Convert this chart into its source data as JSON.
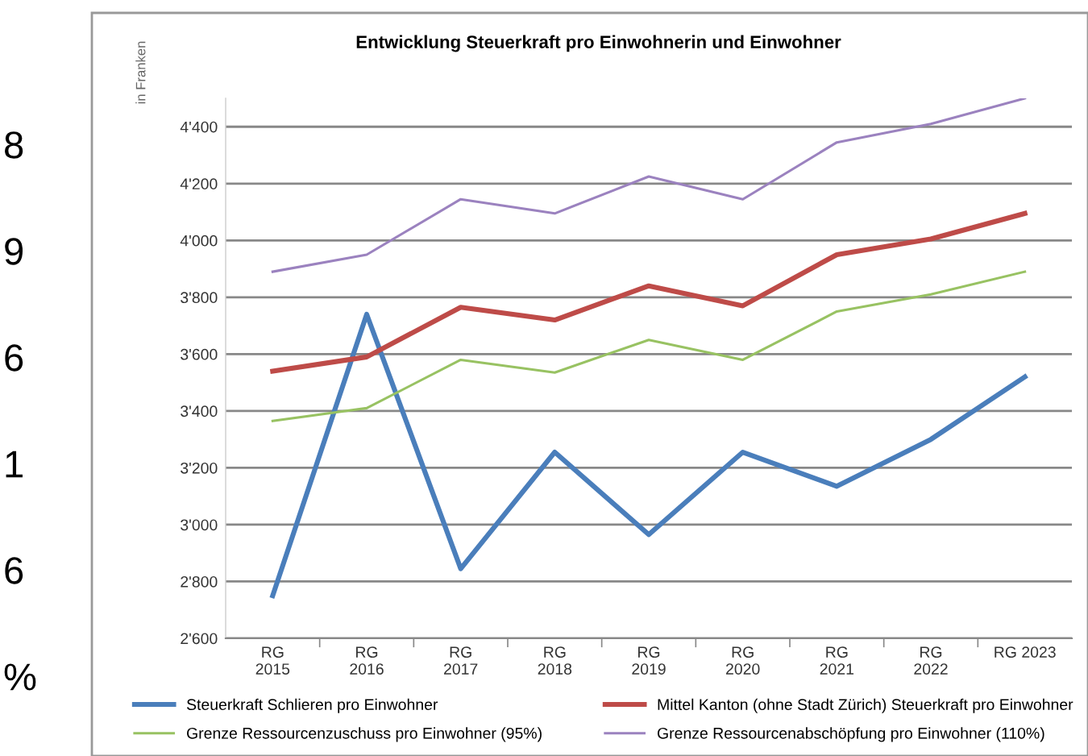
{
  "chart_data": {
    "type": "line",
    "title": "Entwicklung Steuerkraft pro Einwohnerin und Einwohner",
    "ylabel": "in Franken",
    "categories": [
      "RG\n2015",
      "RG\n2016",
      "RG\n2017",
      "RG\n2018",
      "RG\n2019",
      "RG\n2020",
      "RG\n2021",
      "RG\n2022",
      "RG 2023"
    ],
    "series": [
      {
        "name": "Steuerkraft Schlieren pro Einwohner",
        "color": "#4a7ebb",
        "values": [
          2750,
          3740,
          2845,
          3255,
          2965,
          3255,
          3135,
          3300,
          3520
        ]
      },
      {
        "name": "Mittel Kanton (ohne Stadt Zürich) Steuerkraft pro Einwohner",
        "color": "#be4b48",
        "values": [
          3540,
          3590,
          3765,
          3720,
          3840,
          3770,
          3950,
          4005,
          4095
        ]
      },
      {
        "name": "Grenze Ressourcenzuschuss pro Einwohner (95%)",
        "color": "#98c262",
        "values": [
          3365,
          3410,
          3580,
          3535,
          3650,
          3580,
          3750,
          3810,
          3890
        ]
      },
      {
        "name": "Grenze Ressourcenabschöpfung pro Einwohner (110%)",
        "color": "#9b82bf",
        "values": [
          3890,
          3950,
          4145,
          4095,
          4225,
          4145,
          4345,
          4410,
          4500
        ]
      }
    ],
    "ylim": [
      2600,
      4500
    ],
    "yticks": [
      {
        "value": 2600,
        "label": "2'600"
      },
      {
        "value": 2800,
        "label": "2'800"
      },
      {
        "value": 3000,
        "label": "3'000"
      },
      {
        "value": 3200,
        "label": "3'200"
      },
      {
        "value": 3400,
        "label": "3'400"
      },
      {
        "value": 3600,
        "label": "3'600"
      },
      {
        "value": 3800,
        "label": "3'800"
      },
      {
        "value": 4000,
        "label": "4'000"
      },
      {
        "value": 4200,
        "label": "4'200"
      },
      {
        "value": 4400,
        "label": "4'400"
      }
    ],
    "grid": "y",
    "legend": "bottom",
    "marker": "none",
    "line_style": "solid",
    "annotations": [
      "8",
      "9",
      "6",
      "1",
      "6",
      "%"
    ]
  }
}
